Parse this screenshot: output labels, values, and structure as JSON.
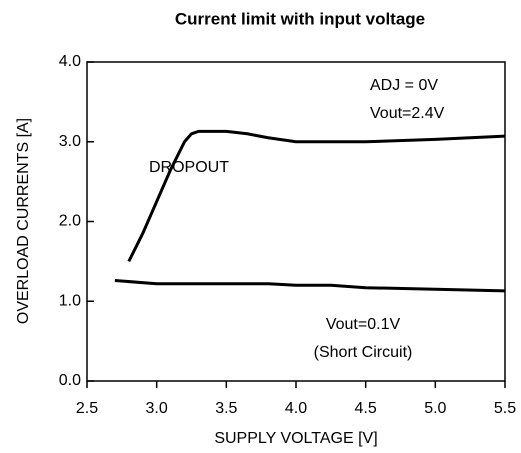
{
  "chart_data": {
    "type": "line",
    "title": "Current limit with input voltage",
    "xlabel": "SUPPLY VOLTAGE [V]",
    "ylabel": "OVERLOAD CURRENTS [A]",
    "annotations": [
      "ADJ  =  0V",
      "Vout=2.4V",
      "DROPOUT",
      "Vout=0.1V",
      "(Short Circuit)"
    ],
    "series": [
      {
        "color": "#000000",
        "x": [
          2.8,
          2.9,
          3.0,
          3.1,
          3.2,
          3.25,
          3.3,
          3.5,
          3.65,
          3.8,
          4.0,
          4.5,
          5.0,
          5.5
        ],
        "values": [
          1.5,
          1.85,
          2.25,
          2.65,
          3.0,
          3.1,
          3.13,
          3.13,
          3.1,
          3.05,
          3.0,
          3.0,
          3.03,
          3.07
        ]
      },
      {
        "color": "#000000",
        "x": [
          2.7,
          3.0,
          3.8,
          4.0,
          4.25,
          4.5,
          5.0,
          5.5
        ],
        "values": [
          1.26,
          1.22,
          1.22,
          1.2,
          1.2,
          1.17,
          1.15,
          1.13
        ]
      }
    ],
    "xlim": [
      2.5,
      5.5
    ],
    "xticks": [
      2.5,
      {
        "value": 3,
        "label": "3.0"
      },
      3.5,
      {
        "value": 4,
        "label": "4.0"
      },
      4.5,
      {
        "value": 5,
        "label": "5.0"
      },
      5.5
    ],
    "ylim": [
      0,
      4
    ],
    "yticks": [
      {
        "value": 0,
        "label": "0.0"
      },
      {
        "value": 1,
        "label": "1.0"
      },
      {
        "value": 2,
        "label": "2.0"
      },
      {
        "value": 3,
        "label": "3.0"
      },
      {
        "value": 4,
        "label": "4.0"
      }
    ],
    "grid": false
  }
}
